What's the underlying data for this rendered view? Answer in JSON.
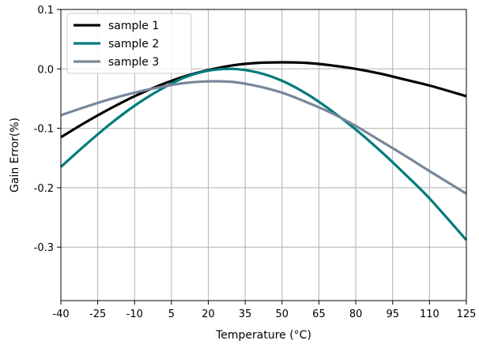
{
  "chart_data": {
    "type": "line",
    "xlabel": "Temperature (°C)",
    "ylabel": "Gain Error(%)",
    "xlim": [
      -40,
      125
    ],
    "ylim": [
      -0.39,
      0.1
    ],
    "x_ticks": [
      -40,
      -25,
      -10,
      5,
      20,
      35,
      50,
      65,
      80,
      95,
      110,
      125
    ],
    "y_ticks": [
      0.1,
      0.0,
      -0.1,
      -0.2,
      -0.3
    ],
    "y_tick_labels": [
      "0.1",
      "0.0",
      "-0.1",
      "-0.2",
      "-0.3"
    ],
    "grid": true,
    "legend_position": "top-left",
    "series": [
      {
        "name": "sample 1",
        "color": "#000000",
        "x": [
          -40,
          -30,
          -20,
          -10,
          0,
          10,
          20,
          30,
          40,
          50,
          60,
          70,
          80,
          90,
          100,
          110,
          125
        ],
        "values": [
          -0.115,
          -0.09,
          -0.067,
          -0.046,
          -0.028,
          -0.013,
          -0.002,
          0.006,
          0.01,
          0.011,
          0.01,
          0.006,
          0.0,
          -0.008,
          -0.018,
          -0.028,
          -0.046
        ]
      },
      {
        "name": "sample 2",
        "color": "#007b7b",
        "x": [
          -40,
          -30,
          -20,
          -10,
          0,
          10,
          20,
          30,
          40,
          50,
          60,
          70,
          80,
          90,
          100,
          110,
          125
        ],
        "values": [
          -0.165,
          -0.128,
          -0.093,
          -0.062,
          -0.036,
          -0.015,
          -0.003,
          0.0,
          -0.006,
          -0.02,
          -0.042,
          -0.07,
          -0.102,
          -0.138,
          -0.177,
          -0.218,
          -0.288
        ]
      },
      {
        "name": "sample 3",
        "color": "#778899",
        "x": [
          -40,
          -30,
          -20,
          -10,
          0,
          10,
          20,
          30,
          40,
          50,
          60,
          70,
          80,
          90,
          100,
          110,
          125
        ],
        "values": [
          -0.078,
          -0.064,
          -0.051,
          -0.04,
          -0.031,
          -0.024,
          -0.021,
          -0.022,
          -0.029,
          -0.04,
          -0.056,
          -0.074,
          -0.096,
          -0.121,
          -0.146,
          -0.172,
          -0.21
        ]
      }
    ]
  }
}
